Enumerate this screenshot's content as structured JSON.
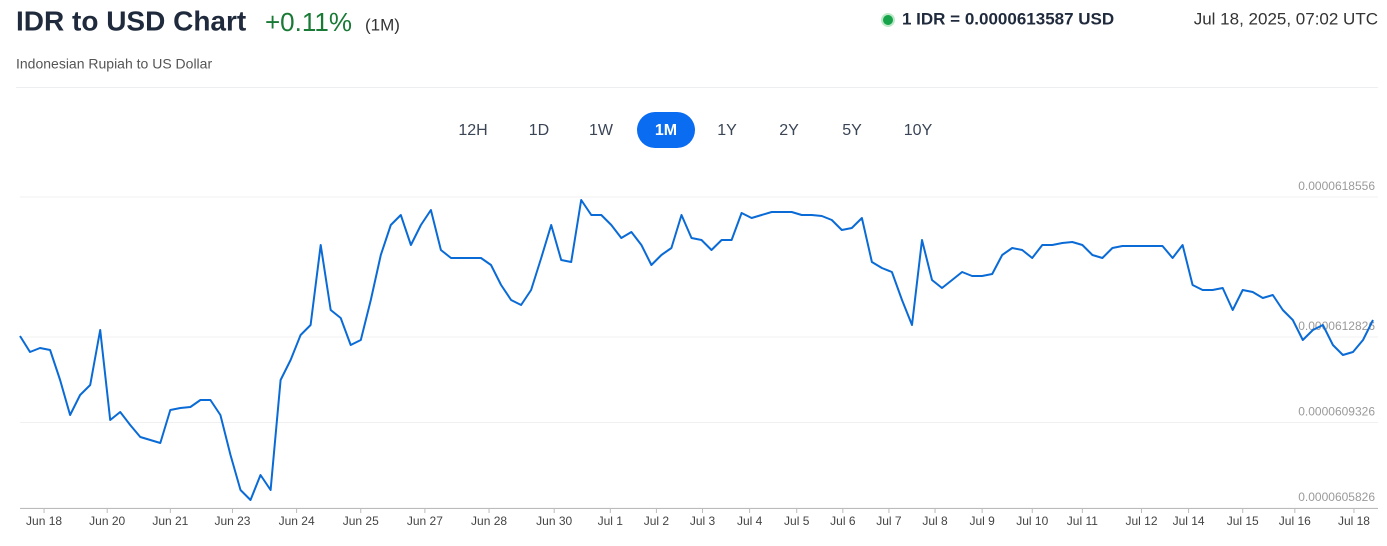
{
  "header": {
    "title": "IDR to USD Chart",
    "change": "+0.11%",
    "period": "(1M)",
    "rate": "1 IDR = 0.0000613587 USD",
    "timestamp": "Jul 18, 2025, 07:02 UTC",
    "subtitle": "Indonesian Rupiah to US Dollar"
  },
  "time_ranges": {
    "options": [
      "12H",
      "1D",
      "1W",
      "1M",
      "1Y",
      "2Y",
      "5Y",
      "10Y"
    ],
    "selected": "1M"
  },
  "chart_data": {
    "type": "line",
    "color": "#0a6bd6",
    "values": [
      6.12867e-05,
      6.12212e-05,
      6.12375e-05,
      6.12293e-05,
      6.11065e-05,
      6.09633e-05,
      6.10452e-05,
      6.10861e-05,
      6.13112e-05,
      6.09428e-05,
      6.09756e-05,
      6.09224e-05,
      6.08732e-05,
      6.0861e-05,
      6.08487e-05,
      6.09838e-05,
      6.09919e-05,
      6.0996e-05,
      6.10247e-05,
      6.10247e-05,
      6.09633e-05,
      6.07996e-05,
      6.06563e-05,
      6.06154e-05,
      6.07177e-05,
      6.06563e-05,
      6.11065e-05,
      6.11884e-05,
      6.12907e-05,
      6.13317e-05,
      6.16591e-05,
      6.13931e-05,
      6.13603e-05,
      6.12498e-05,
      6.12703e-05,
      6.1434e-05,
      6.16182e-05,
      6.1741e-05,
      6.17819e-05,
      6.16591e-05,
      6.1741e-05,
      6.18024e-05,
      6.16387e-05,
      6.16059e-05,
      6.16059e-05,
      6.16059e-05,
      6.16059e-05,
      6.15773e-05,
      6.14954e-05,
      6.1434e-05,
      6.14135e-05,
      6.14749e-05,
      6.16059e-05,
      6.1741e-05,
      6.15977e-05,
      6.15895e-05,
      6.18433e-05,
      6.17819e-05,
      6.17819e-05,
      6.1741e-05,
      6.16878e-05,
      6.17123e-05,
      6.16591e-05,
      6.15773e-05,
      6.16182e-05,
      6.16469e-05,
      6.17819e-05,
      6.16878e-05,
      6.16796e-05,
      6.16387e-05,
      6.16796e-05,
      6.16796e-05,
      6.17901e-05,
      6.17696e-05,
      6.17819e-05,
      6.17942e-05,
      6.17942e-05,
      6.17942e-05,
      6.17819e-05,
      6.17819e-05,
      6.17778e-05,
      6.17615e-05,
      6.17205e-05,
      6.17287e-05,
      6.17696e-05,
      6.15895e-05,
      6.1565e-05,
      6.15486e-05,
      6.1434e-05,
      6.13317e-05,
      6.16796e-05,
      6.15159e-05,
      6.14831e-05,
      6.15159e-05,
      6.15486e-05,
      6.15322e-05,
      6.15322e-05,
      6.15404e-05,
      6.16182e-05,
      6.16469e-05,
      6.16387e-05,
      6.16059e-05,
      6.16591e-05,
      6.16591e-05,
      6.16673e-05,
      6.16714e-05,
      6.16591e-05,
      6.16182e-05,
      6.16059e-05,
      6.16469e-05,
      6.1655e-05,
      6.1655e-05,
      6.1655e-05,
      6.1655e-05,
      6.1655e-05,
      6.16059e-05,
      6.16591e-05,
      6.14954e-05,
      6.14749e-05,
      6.14749e-05,
      6.14831e-05,
      6.13931e-05,
      6.14749e-05,
      6.14667e-05,
      6.14422e-05,
      6.14545e-05,
      6.13931e-05,
      6.13521e-05,
      6.12703e-05,
      6.13112e-05,
      6.13317e-05,
      6.12498e-05,
      6.12089e-05,
      6.12212e-05,
      6.12703e-05,
      6.13521e-05
    ],
    "xlim": [
      0,
      135
    ],
    "xticks": [
      {
        "value": 2.4,
        "label": "Jun 18"
      },
      {
        "value": 8.7,
        "label": "Jun 20"
      },
      {
        "value": 15,
        "label": "Jun 21"
      },
      {
        "value": 21.2,
        "label": "Jun 23"
      },
      {
        "value": 27.6,
        "label": "Jun 24"
      },
      {
        "value": 34,
        "label": "Jun 25"
      },
      {
        "value": 40.4,
        "label": "Jun 27"
      },
      {
        "value": 46.8,
        "label": "Jun 28"
      },
      {
        "value": 53.3,
        "label": "Jun 30"
      },
      {
        "value": 58.9,
        "label": "Jul 1"
      },
      {
        "value": 63.5,
        "label": "Jul 2"
      },
      {
        "value": 68.1,
        "label": "Jul 3"
      },
      {
        "value": 72.8,
        "label": "Jul 4"
      },
      {
        "value": 77.5,
        "label": "Jul 5"
      },
      {
        "value": 82.1,
        "label": "Jul 6"
      },
      {
        "value": 86.7,
        "label": "Jul 7"
      },
      {
        "value": 91.3,
        "label": "Jul 8"
      },
      {
        "value": 96,
        "label": "Jul 9"
      },
      {
        "value": 101,
        "label": "Jul 10"
      },
      {
        "value": 106,
        "label": "Jul 11"
      },
      {
        "value": 111.9,
        "label": "Jul 12"
      },
      {
        "value": 116.6,
        "label": "Jul 14"
      },
      {
        "value": 122,
        "label": "Jul 15"
      },
      {
        "value": 127.2,
        "label": "Jul 16"
      },
      {
        "value": 133.1,
        "label": "Jul 18"
      }
    ],
    "ylim": [
      6.05826e-05,
      6.18556e-05
    ],
    "yticks": [
      6.05826e-05,
      6.09326e-05,
      6.12826e-05,
      6.18556e-05
    ],
    "grid": true
  }
}
